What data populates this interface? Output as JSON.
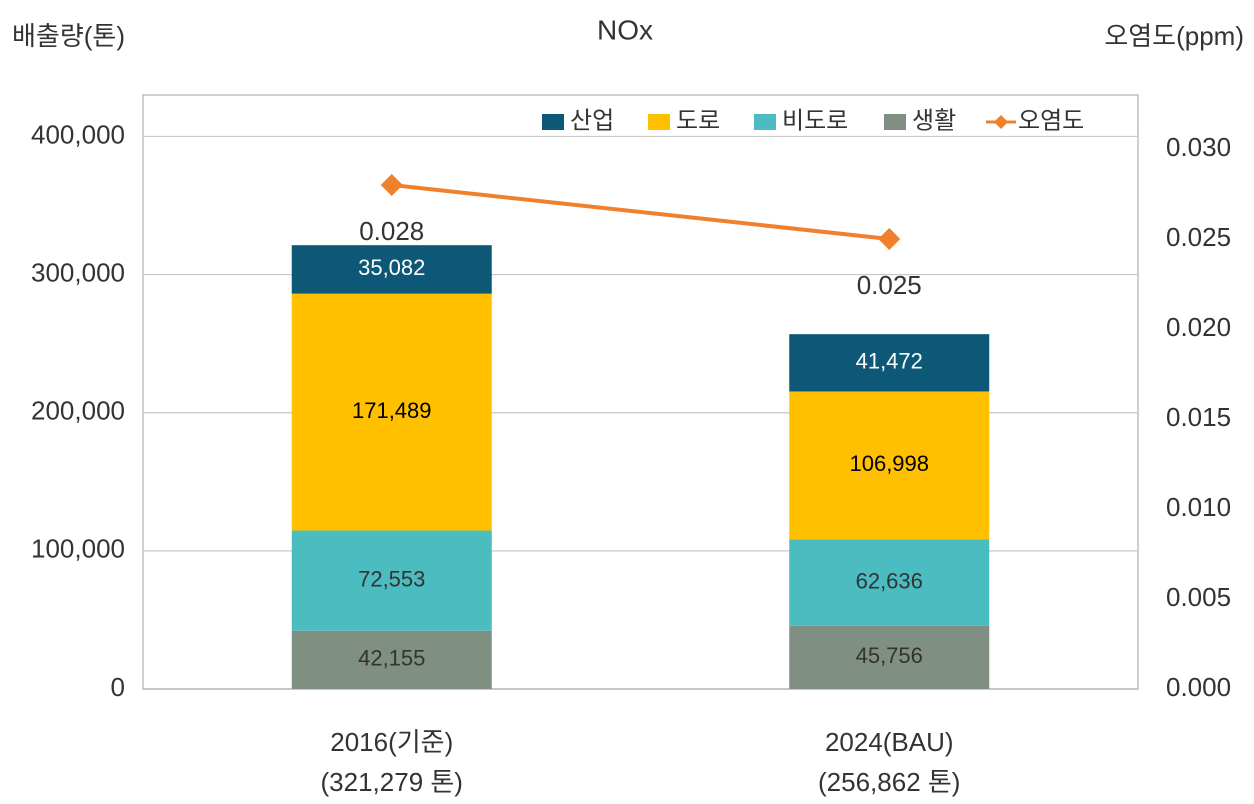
{
  "chart_data": {
    "type": "stacked-bar-line",
    "title": "NOx",
    "y_label": "배출량(톤)",
    "y2_label": "오염도(ppm)",
    "categories": [
      "2016(기준)",
      "2024(BAU)"
    ],
    "category_sublabels": [
      "(321,279 톤)",
      "(256,862 톤)"
    ],
    "series": [
      {
        "name": "산업",
        "color": "#0d5877",
        "values": [
          35082,
          41472
        ],
        "value_labels": [
          "35,082",
          "41,472"
        ],
        "label_color": "#ffffff"
      },
      {
        "name": "도로",
        "color": "#ffc000",
        "values": [
          171489,
          106998
        ],
        "value_labels": [
          "171,489",
          "106,998"
        ],
        "label_color": "#000000"
      },
      {
        "name": "비도로",
        "color": "#4bbcbf",
        "values": [
          72553,
          62636
        ],
        "value_labels": [
          "72,553",
          "62,636"
        ],
        "label_color": "#333333"
      },
      {
        "name": "생활",
        "color": "#7f8f82",
        "values": [
          42155,
          45756
        ],
        "value_labels": [
          "42,155",
          "45,756"
        ],
        "label_color": "#333333"
      },
      {
        "name": "오염도",
        "type": "line",
        "axis": "y2",
        "color": "#f0802c",
        "values": [
          0.028,
          0.025
        ]
      }
    ],
    "ylim": [
      0,
      430000
    ],
    "yticks": [
      0,
      {
        "value": 100000,
        "label": "100,000"
      },
      {
        "value": 200000,
        "label": "200,000"
      },
      {
        "value": 300000,
        "label": "300,000"
      },
      {
        "value": 400000,
        "label": "400,000"
      }
    ],
    "y2lim": [
      0,
      0.033
    ],
    "y2ticks": [
      {
        "value": 0,
        "label": "0.000"
      },
      {
        "value": 0.005,
        "label": "0.005"
      },
      {
        "value": 0.01,
        "label": "0.010"
      },
      {
        "value": 0.015,
        "label": "0.015"
      },
      {
        "value": 0.02,
        "label": "0.020"
      },
      {
        "value": 0.025,
        "label": "0.025"
      },
      {
        "value": 0.03,
        "label": "0.030"
      }
    ],
    "grid": true,
    "legend": "upper right"
  }
}
